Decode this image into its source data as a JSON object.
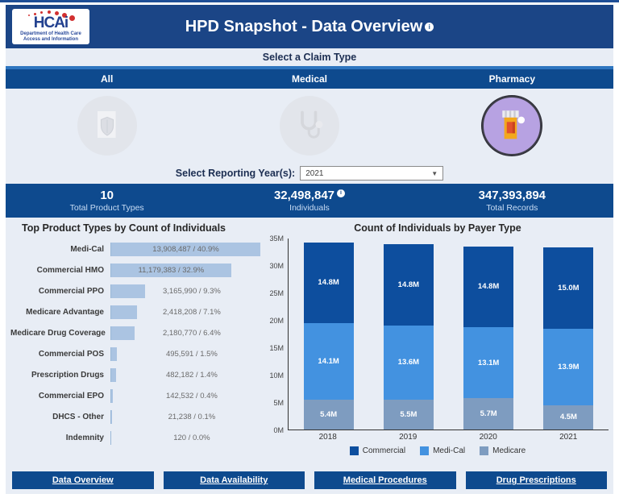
{
  "header": {
    "logo": {
      "text": "HCAi",
      "subtext": "Department of Health Care Access and Information"
    },
    "title": "HPD Snapshot - Data Overview",
    "info_icon": "i"
  },
  "claim_type": {
    "label": "Select a Claim Type",
    "tabs": [
      {
        "label": "All",
        "icon": "shield-document-icon",
        "selected": false
      },
      {
        "label": "Medical",
        "icon": "stethoscope-icon",
        "selected": false
      },
      {
        "label": "Pharmacy",
        "icon": "pill-bottle-icon",
        "selected": true
      }
    ]
  },
  "year_filter": {
    "label": "Select Reporting Year(s):",
    "value": "2021"
  },
  "stats": [
    {
      "value": "10",
      "label": "Total Product Types",
      "info": false
    },
    {
      "value": "32,498,847",
      "label": "Individuals",
      "info": true
    },
    {
      "value": "347,393,894",
      "label": "Total Records",
      "info": false
    }
  ],
  "chart_data": [
    {
      "type": "bar",
      "orientation": "horizontal",
      "title": "Top Product Types by Count of Individuals",
      "categories": [
        "Medi-Cal",
        "Commercial HMO",
        "Commercial PPO",
        "Medicare Advantage",
        "Medicare Drug Coverage",
        "Commercial POS",
        "Prescription Drugs",
        "Commercial EPO",
        "DHCS - Other",
        "Indemnity"
      ],
      "values": [
        13908487,
        11179383,
        3165990,
        2418208,
        2180770,
        495591,
        482182,
        142532,
        21238,
        120
      ],
      "labels": [
        "13,908,487 / 40.9%",
        "11,179,383 / 32.9%",
        "3,165,990 / 9.3%",
        "2,418,208 / 7.1%",
        "2,180,770 / 6.4%",
        "495,591 / 1.5%",
        "482,182 / 1.4%",
        "142,532 / 0.4%",
        "21,238 / 0.1%",
        "120 / 0.0%"
      ],
      "xlim": [
        0,
        13908487
      ],
      "bar_color": "#abc4e2",
      "grid": false
    },
    {
      "type": "bar",
      "stacked": true,
      "title": "Count of Individuals by Payer Type",
      "categories": [
        "2018",
        "2019",
        "2020",
        "2021"
      ],
      "series": [
        {
          "name": "Commercial",
          "color": "#0d4e9e",
          "values": [
            14.8,
            14.8,
            14.8,
            15.0
          ],
          "labels": [
            "14.8M",
            "14.8M",
            "14.8M",
            "15.0M"
          ]
        },
        {
          "name": "Medi-Cal",
          "color": "#4392e0",
          "values": [
            14.1,
            13.6,
            13.1,
            13.9
          ],
          "labels": [
            "14.1M",
            "13.6M",
            "13.1M",
            "13.9M"
          ]
        },
        {
          "name": "Medicare",
          "color": "#7e9cc0",
          "values": [
            5.4,
            5.5,
            5.7,
            4.5
          ],
          "labels": [
            "5.4M",
            "5.5M",
            "5.7M",
            "4.5M"
          ]
        }
      ],
      "unit": "millions",
      "ylim": [
        0,
        35
      ],
      "yticks": [
        "35M",
        "30M",
        "25M",
        "20M",
        "15M",
        "10M",
        "5M",
        "0M"
      ],
      "legend_position": "bottom",
      "grid": false
    }
  ],
  "footer_nav": [
    {
      "label": "Data Overview"
    },
    {
      "label": "Data Availability"
    },
    {
      "label": "Medical Procedures"
    },
    {
      "label": "Drug Prescriptions"
    }
  ],
  "colors": {
    "header_blue": "#1b4586",
    "bar_blue": "#0e4a8e",
    "tab_strip": "#2e76c0",
    "background": "#e8edf5",
    "selected_circle": "#b7a2e2",
    "left_bar": "#abc4e2"
  }
}
